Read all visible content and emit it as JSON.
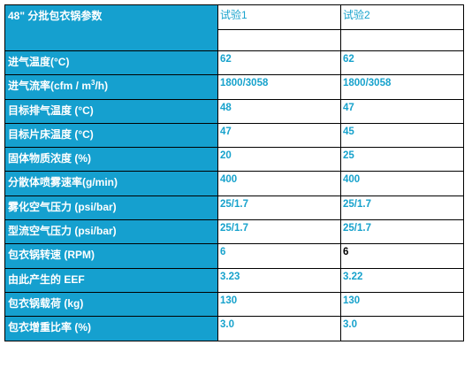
{
  "table": {
    "title": "48\" 分批包衣锅参数",
    "trial_headers": [
      "试验1",
      "试验2"
    ],
    "accent_color": "#15a0cf",
    "value_color": "#17a2cc",
    "rows": [
      {
        "label": "进气温度(°C)",
        "t1": "62",
        "t2": "62"
      },
      {
        "label_pre": "进气流率(cfm / m",
        "label_sup": "3",
        "label_post": "/h)",
        "t1": "1800/3058",
        "t2": "1800/3058"
      },
      {
        "label": "目标排气温度 (°C)",
        "t1": "48",
        "t2": "47"
      },
      {
        "label": "目标片床温度 (°C)",
        "t1": "47",
        "t2": "45"
      },
      {
        "label": "固体物质浓度 (%)",
        "t1": "20",
        "t2": "25"
      },
      {
        "label": "分散体喷雾速率(g/min)",
        "t1": "400",
        "t2": "400"
      },
      {
        "label": "雾化空气压力 (psi/bar)",
        "t1": "25/1.7",
        "t2": "25/1.7"
      },
      {
        "label": "型流空气压力 (psi/bar)",
        "t1": "25/1.7",
        "t2": "25/1.7"
      },
      {
        "label": "包衣锅转速  (RPM)",
        "t1": "6",
        "t2": "6"
      },
      {
        "label": "由此产生的 EEF",
        "t1": "3.23",
        "t2": "3.22"
      },
      {
        "label": "包衣锅载荷 (kg)",
        "t1": "130",
        "t2": "130"
      },
      {
        "label": "包衣增重比率 (%)",
        "t1": "3.0",
        "t2": "3.0"
      }
    ]
  }
}
